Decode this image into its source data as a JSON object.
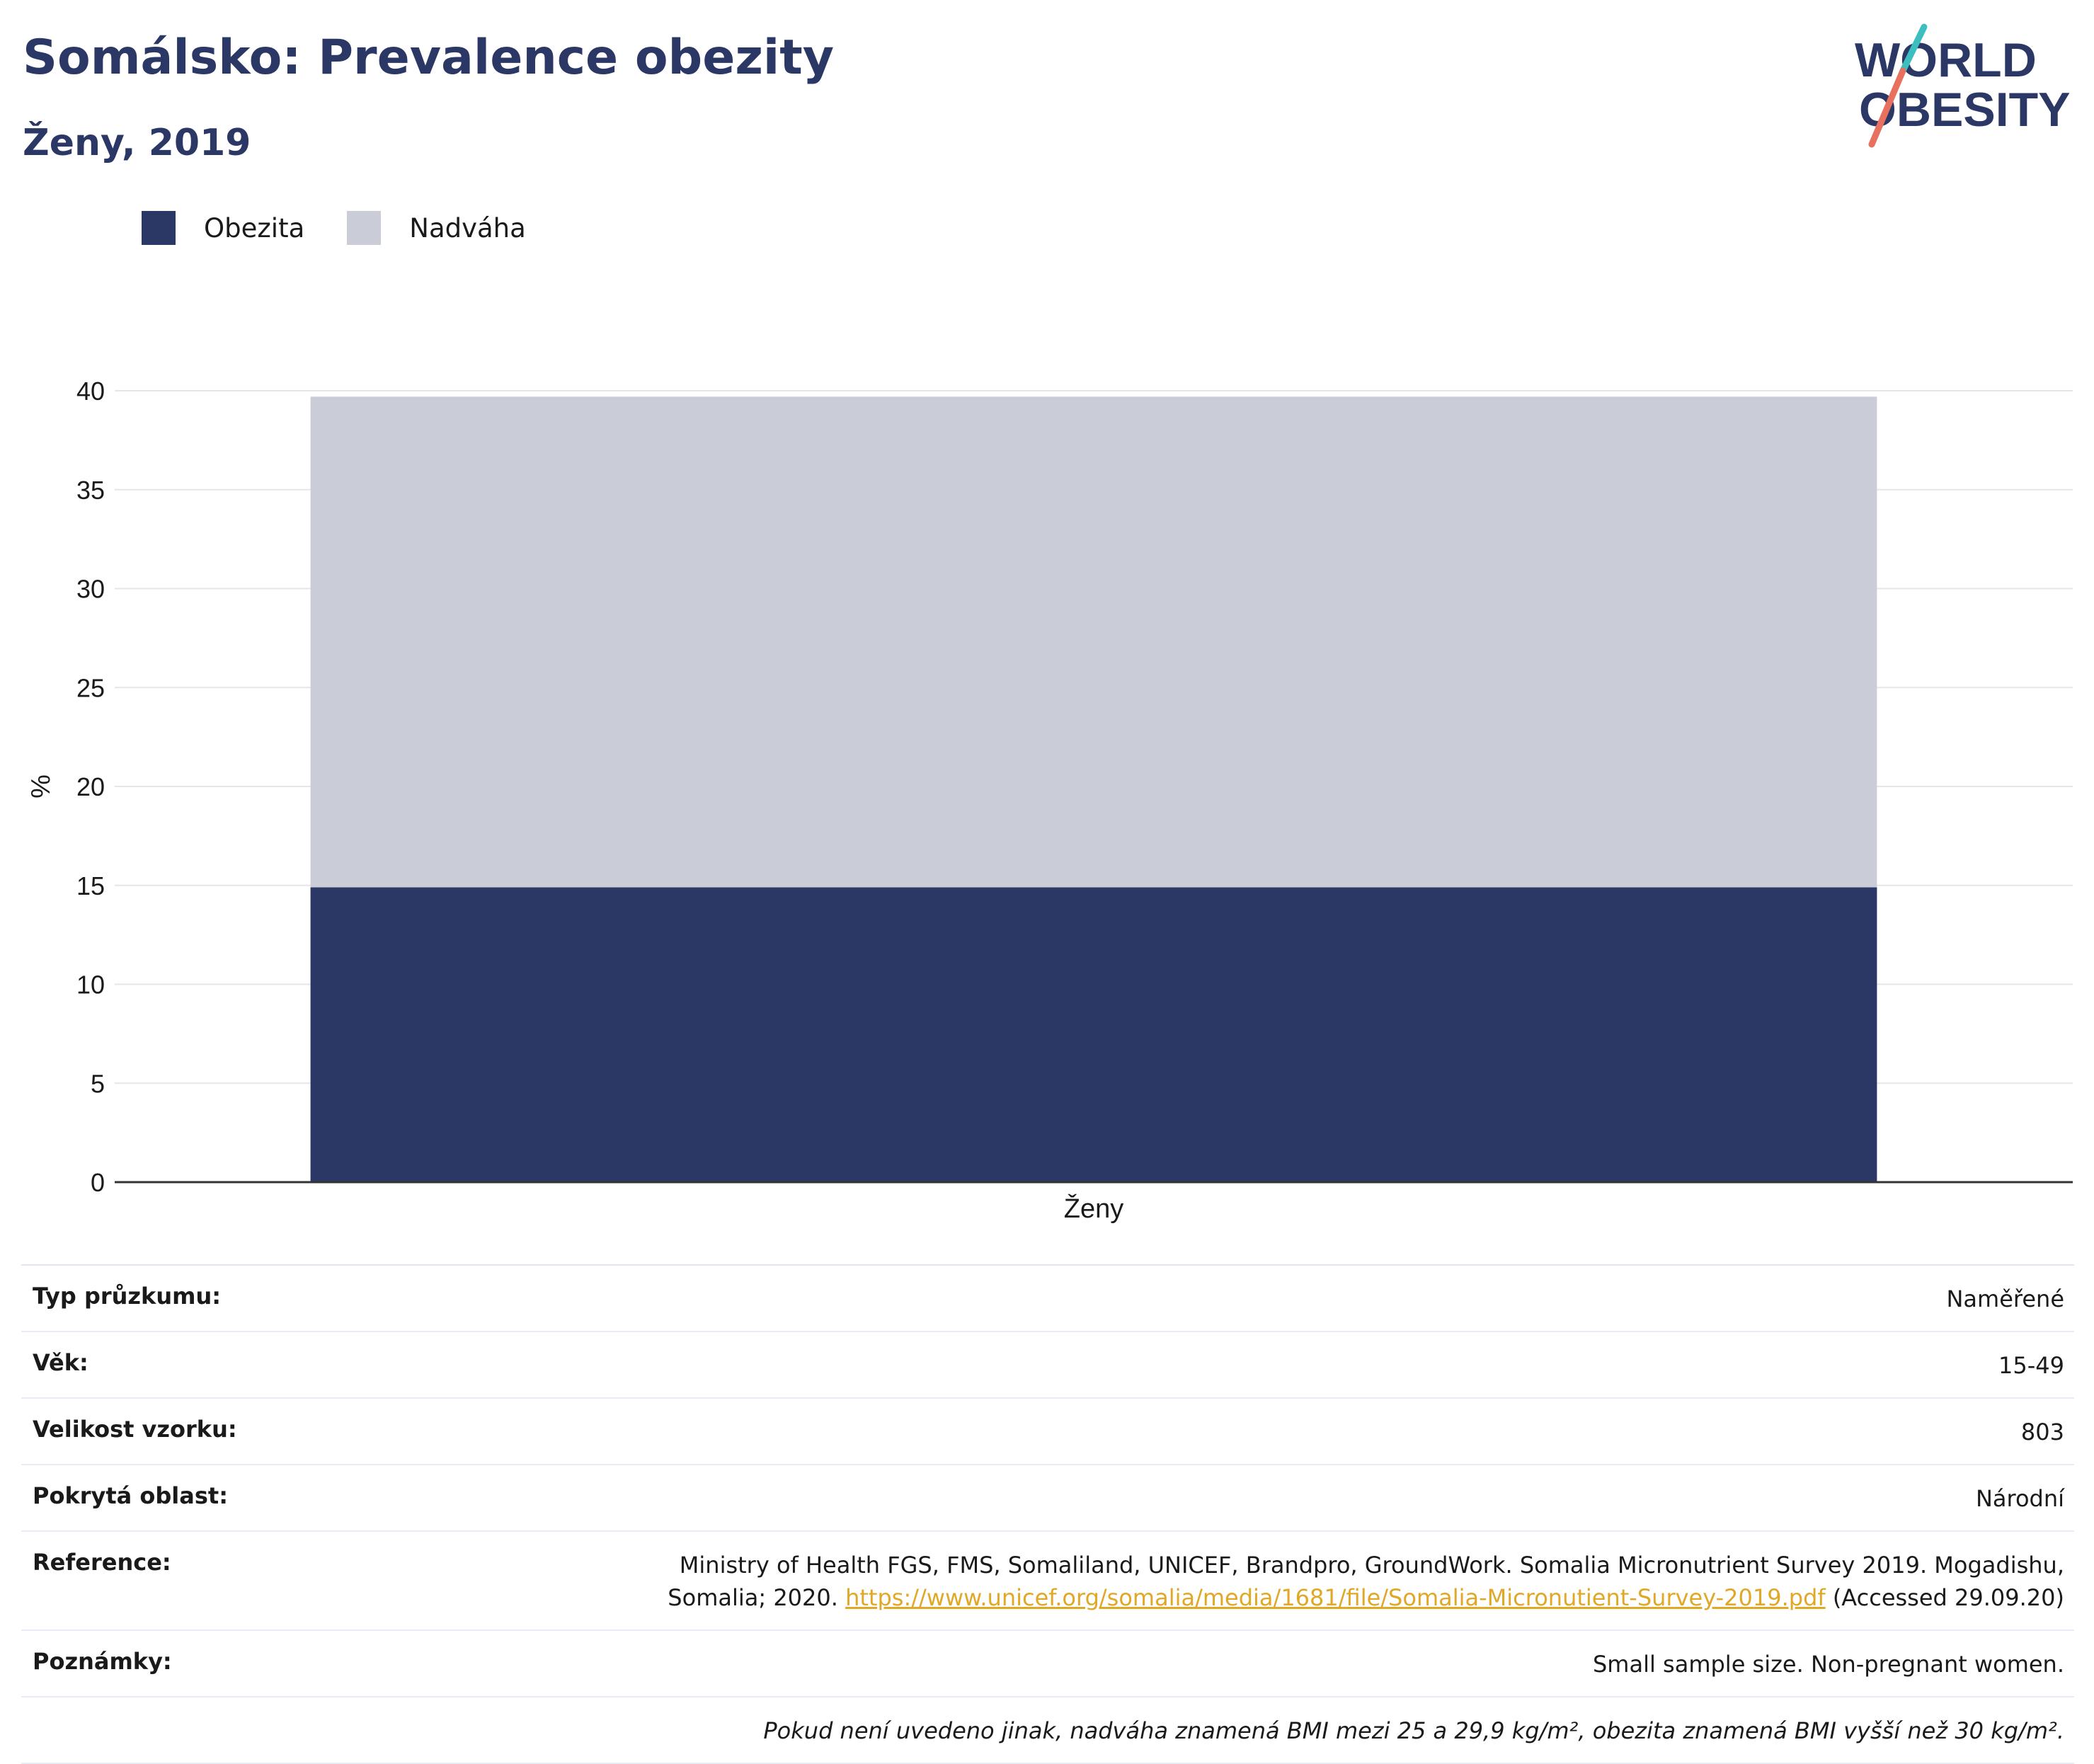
{
  "header": {
    "title": "Somálsko: Prevalence obezity",
    "subtitle": "Ženy, 2019"
  },
  "logo": {
    "line1": "WORLD",
    "line2": "OBESITY"
  },
  "colors": {
    "brand": "#2b3764",
    "obesity": "#2b3764",
    "overweight": "#cacdd8",
    "logo_slash_top": "#3dbfc0",
    "logo_slash_bottom": "#e8705e",
    "link": "#e0a826"
  },
  "legend": {
    "items": [
      {
        "label": "Obezita",
        "color": "#2b3764"
      },
      {
        "label": "Nadváha",
        "color": "#cacdd8"
      }
    ]
  },
  "chart_data": {
    "type": "bar",
    "stacked": true,
    "categories": [
      "Ženy"
    ],
    "series": [
      {
        "name": "Obezita",
        "values": [
          14.9
        ],
        "color": "#2b3764"
      },
      {
        "name": "Nadváha",
        "values": [
          24.8
        ],
        "color": "#cacdd8"
      }
    ],
    "ylabel": "%",
    "xlabel": "",
    "ylim": [
      0,
      40
    ],
    "yticks": [
      "0",
      "5",
      "10",
      "15",
      "20",
      "25",
      "30",
      "35",
      "40"
    ],
    "grid": true,
    "legend_position": "top-left"
  },
  "info": {
    "survey_type_label": "Typ průzkumu:",
    "survey_type_value": "Naměřené",
    "age_label": "Věk:",
    "age_value": "15-49",
    "sample_label": "Velikost vzorku:",
    "sample_value": "803",
    "coverage_label": "Pokrytá oblast:",
    "coverage_value": "Národní",
    "reference_label": "Reference:",
    "reference_text": "Ministry of Health FGS, FMS, Somaliland, UNICEF, Brandpro, GroundWork. Somalia Micronutrient Survey 2019. Mogadishu, Somalia; 2020.",
    "reference_link": "https://www.unicef.org/somalia/media/1681/file/Somalia-Micronutient-Survey-2019.pdf",
    "reference_accessed": "(Accessed 29.09.20)",
    "notes_label": "Poznámky:",
    "notes_value": "Small sample size. Non-pregnant women.",
    "footnote": "Pokud není uvedeno jinak, nadváha znamená BMI mezi 25 a 29,9 kg/m², obezita znamená BMI vyšší než 30 kg/m²."
  }
}
